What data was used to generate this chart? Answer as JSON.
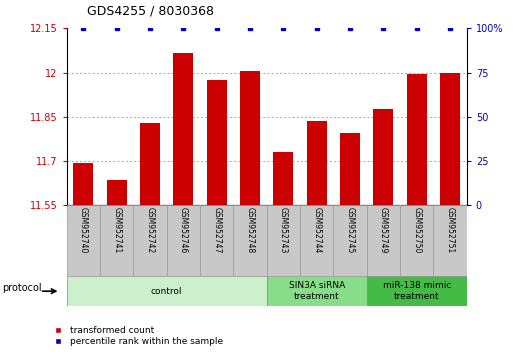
{
  "title": "GDS4255 / 8030368",
  "samples": [
    "GSM952740",
    "GSM952741",
    "GSM952742",
    "GSM952746",
    "GSM952747",
    "GSM952748",
    "GSM952743",
    "GSM952744",
    "GSM952745",
    "GSM952749",
    "GSM952750",
    "GSM952751"
  ],
  "bar_values": [
    11.695,
    11.635,
    11.83,
    12.065,
    11.975,
    12.005,
    11.73,
    11.835,
    11.795,
    11.875,
    11.995,
    12.0
  ],
  "percentile_values": [
    100,
    100,
    100,
    100,
    100,
    100,
    100,
    100,
    100,
    100,
    100,
    100
  ],
  "ylim_left": [
    11.55,
    12.15
  ],
  "ylim_right": [
    0,
    100
  ],
  "yticks_left": [
    11.55,
    11.7,
    11.85,
    12.0,
    12.15
  ],
  "ytick_labels_left": [
    "11.55",
    "11.7",
    "11.85",
    "12",
    "12.15"
  ],
  "yticks_right": [
    0,
    25,
    50,
    75,
    100
  ],
  "ytick_labels_right": [
    "0",
    "25",
    "50",
    "75",
    "100%"
  ],
  "bar_color": "#cc0000",
  "dot_color": "#0000cc",
  "bar_bottom": 11.55,
  "bar_width": 0.6,
  "protocols": [
    {
      "label": "control",
      "start": 0,
      "end": 5,
      "color": "#ccf0cc"
    },
    {
      "label": "SIN3A siRNA\ntreatment",
      "start": 6,
      "end": 8,
      "color": "#88dd88"
    },
    {
      "label": "miR-138 mimic\ntreatment",
      "start": 9,
      "end": 11,
      "color": "#44bb44"
    }
  ],
  "protocol_label": "protocol",
  "legend_items": [
    {
      "label": "transformed count",
      "color": "#cc0000"
    },
    {
      "label": "percentile rank within the sample",
      "color": "#0000cc"
    }
  ],
  "grid_color": "#888888",
  "tick_label_color_left": "#cc0000",
  "tick_label_color_right": "#0000cc",
  "label_box_color": "#c8c8c8",
  "label_box_edge": "#999999"
}
